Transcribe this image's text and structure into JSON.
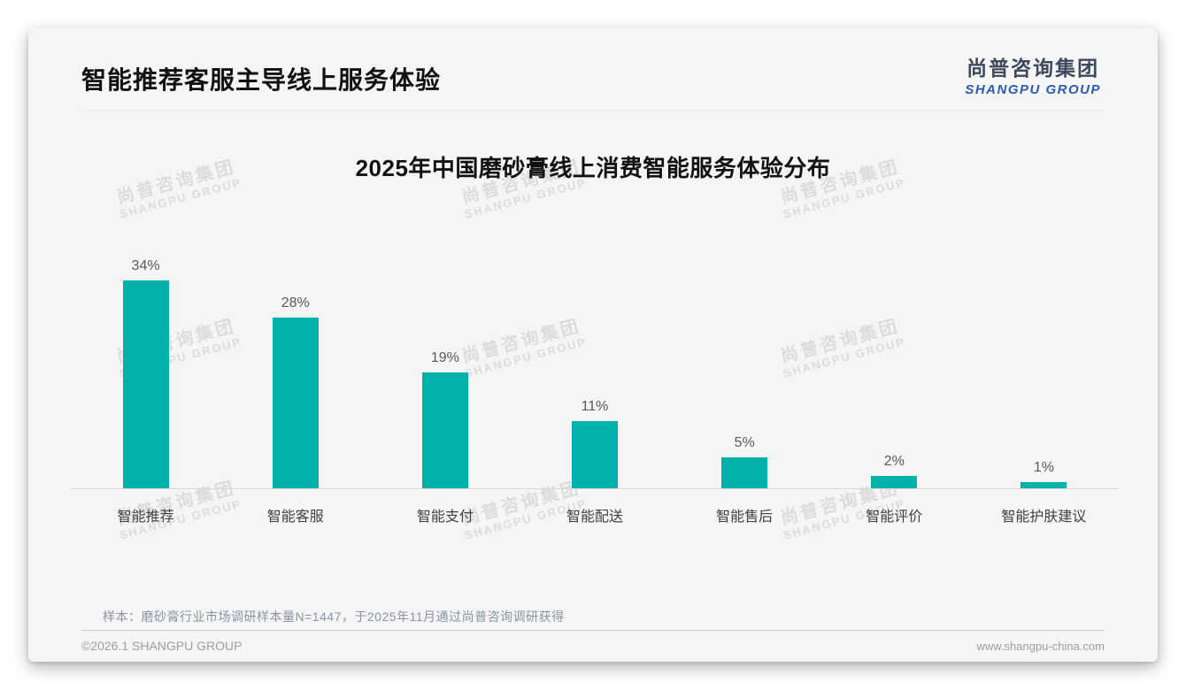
{
  "page": {
    "header": {
      "title": "智能推荐客服主导线上服务体验"
    },
    "logo": {
      "cn": "尚普咨询集团",
      "en": "SHANGPU GROUP"
    },
    "watermark": {
      "cn": "尚普咨询集团",
      "en": "SHANGPU GROUP"
    },
    "note": "样本：磨砂膏行业市场调研样本量N=1447，于2025年11月通过尚普咨询调研获得",
    "footer": {
      "copyright": "©2026.1 SHANGPU GROUP",
      "website": "www.shangpu-china.com"
    }
  },
  "colors": {
    "bar": "#00b2aa",
    "logo_cn": "#3d4a5e",
    "logo_en": "#2b5cad",
    "watermark": "#dcdcdc",
    "card_background": "#f5f5f5",
    "axis_line": "#d9d9d9"
  },
  "chart_data": {
    "type": "bar",
    "title": "2025年中国磨砂膏线上消费智能服务体验分布",
    "categories": [
      "智能推荐",
      "智能客服",
      "智能支付",
      "智能配送",
      "智能售后",
      "智能评价",
      "智能护肤建议"
    ],
    "values": [
      34,
      28,
      19,
      11,
      5,
      2,
      1
    ],
    "data_labels": [
      "34%",
      "28%",
      "19%",
      "11%",
      "5%",
      "2%",
      "1%"
    ],
    "unit": "%",
    "bar_color": "#00b2aa",
    "ylim": [
      0,
      39
    ],
    "grid": false,
    "legend": false,
    "xlabel": "",
    "ylabel": ""
  }
}
